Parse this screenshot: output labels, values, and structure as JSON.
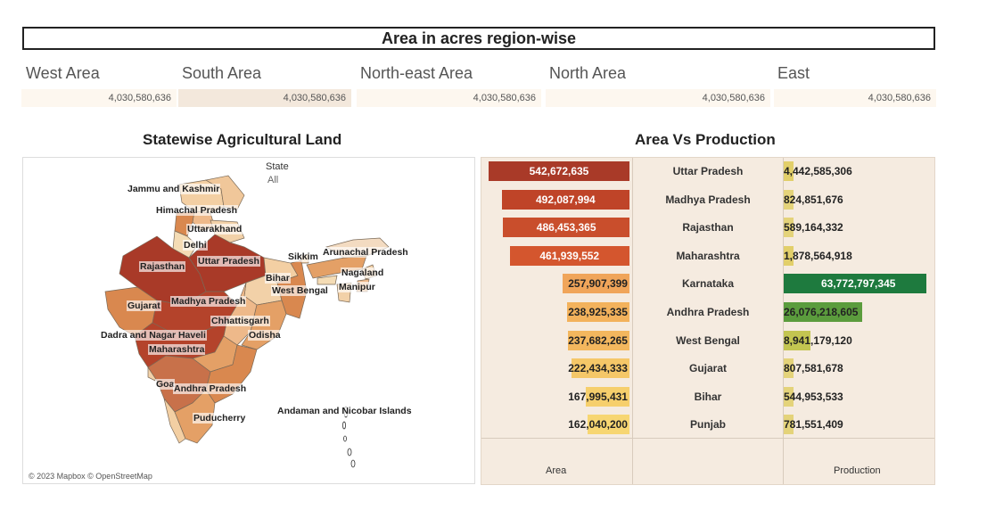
{
  "title": "Area in acres region-wise",
  "kpis": [
    {
      "label": "West Area",
      "value": "4,030,580,636",
      "bg": "#fdf7ef"
    },
    {
      "label": "South Area",
      "value": "4,030,580,636",
      "bg": "#f3e8dc"
    },
    {
      "label": "North-east Area",
      "value": "4,030,580,636",
      "bg": "#fdf7ef"
    },
    {
      "label": "North Area",
      "value": "4,030,580,636",
      "bg": "#fdf7ef"
    },
    {
      "label": "East",
      "value": "4,030,580,636",
      "bg": "#fdf7ef"
    }
  ],
  "map": {
    "title": "Statewise Agricultural Land",
    "legend_title": "State",
    "legend_value": "All",
    "attribution": "© 2023 Mapbox © OpenStreetMap",
    "labels": [
      "Jammu and Kashmir",
      "Himachal Pradesh",
      "Uttarakhand",
      "Delhi",
      "Rajasthan",
      "Uttar Pradesh",
      "Sikkim",
      "Arunachal Pradesh",
      "Nagaland",
      "Bihar",
      "West Bengal",
      "Manipur",
      "Gujarat",
      "Madhya Pradesh",
      "Chhattisgarh",
      "Odisha",
      "Dadra and Nagar Haveli",
      "Maharashtra",
      "Goa",
      "Andhra Pradesh",
      "Puducherry",
      "Andaman and Nicobar Islands"
    ]
  },
  "chart": {
    "title": "Area Vs Production",
    "area_axis": "Area",
    "production_axis": "Production"
  },
  "chart_data": {
    "type": "bar",
    "categories": [
      "Uttar Pradesh",
      "Madhya Pradesh",
      "Rajasthan",
      "Maharashtra",
      "Karnataka",
      "Andhra Pradesh",
      "West Bengal",
      "Gujarat",
      "Bihar",
      "Punjab"
    ],
    "series": [
      {
        "name": "Area",
        "values": [
          542672635,
          492087994,
          486453365,
          461939552,
          257907399,
          238925335,
          237682265,
          222434333,
          167995431,
          162040200
        ],
        "labels": [
          "542,672,635",
          "492,087,994",
          "486,453,365",
          "461,939,552",
          "257,907,399",
          "238,925,335",
          "237,682,265",
          "222,434,333",
          "167,995,431",
          "162,040,200"
        ],
        "colors": [
          "#a93a28",
          "#bf4428",
          "#c94e2c",
          "#d4562e",
          "#f0a55a",
          "#f3b25c",
          "#f3b75e",
          "#f5c768",
          "#f6cf6c",
          "#f7d672"
        ]
      },
      {
        "name": "Production",
        "values": [
          4442585306,
          824851676,
          589164332,
          1878564918,
          63772797345,
          26076218605,
          8941179120,
          807581678,
          544953533,
          781551409
        ],
        "labels": [
          "4,442,585,306",
          "824,851,676",
          "589,164,332",
          "1,878,564,918",
          "63,772,797,345",
          "26,076,218,605",
          "8,941,179,120",
          "807,581,678",
          "544,953,533",
          "781,551,409"
        ],
        "colors": [
          "#e2cf6a",
          "#e4d37a",
          "#e4d37a",
          "#e2cf6a",
          "#1e7a3e",
          "#5b9c3d",
          "#c3c551",
          "#e4d37a",
          "#e4d37a",
          "#e4d37a"
        ]
      }
    ]
  }
}
